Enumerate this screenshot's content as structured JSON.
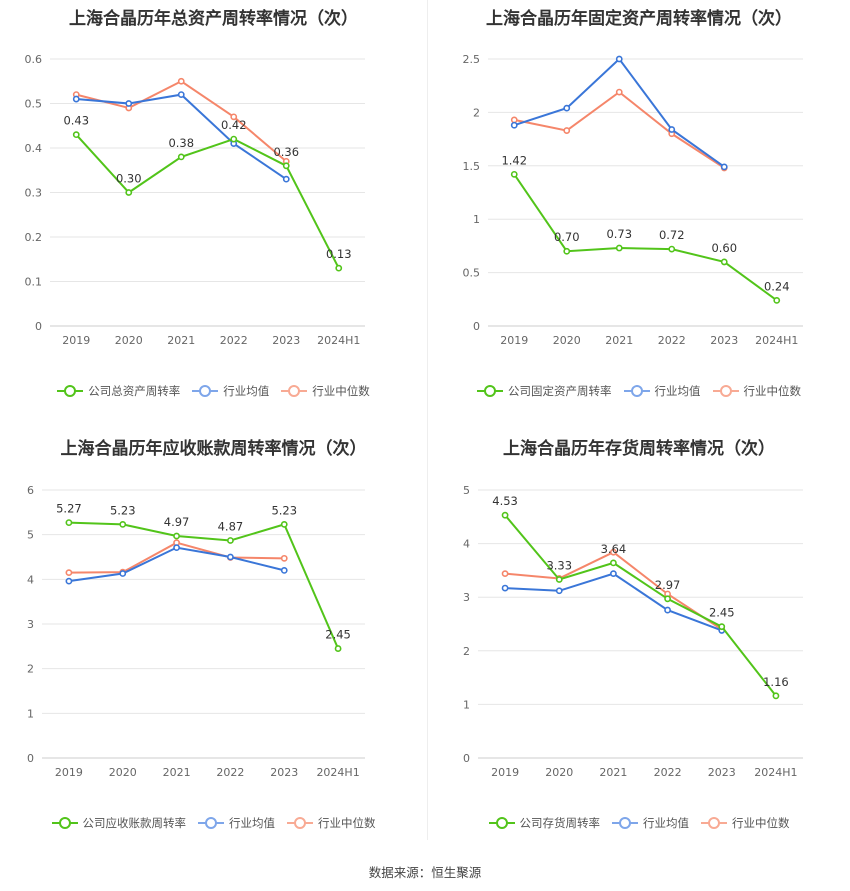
{
  "colors": {
    "company": "#52c41a",
    "avg": "#3a76d8",
    "median": "#f5866a"
  },
  "legend_company_color": "company",
  "charts": [
    {
      "title": "上海合晶历年总资产周转率情况（次）",
      "legend": [
        "公司总资产周转率",
        "行业均值",
        "行业中位数"
      ]
    },
    {
      "title": "上海合晶历年固定资产周转率情况（次）",
      "legend": [
        "公司固定资产周转率",
        "行业均值",
        "行业中位数"
      ]
    },
    {
      "title": "上海合晶历年应收账款周转率情况（次）",
      "legend": [
        "公司应收账款周转率",
        "行业均值",
        "行业中位数"
      ]
    },
    {
      "title": "上海合晶历年存货周转率情况（次）",
      "legend": [
        "公司存货周转率",
        "行业均值",
        "行业中位数"
      ]
    }
  ],
  "chart_data": [
    {
      "type": "line",
      "title": "上海合晶历年总资产周转率情况（次）",
      "categories": [
        "2019",
        "2020",
        "2021",
        "2022",
        "2023",
        "2024H1"
      ],
      "ylim": [
        0,
        0.6
      ],
      "yticks": [
        "0",
        "0.1",
        "0.2",
        "0.3",
        "0.4",
        "0.5",
        "0.6"
      ],
      "grid": true,
      "legend_position": "bottom",
      "series": [
        {
          "name": "公司总资产周转率",
          "role": "company",
          "values": [
            0.43,
            0.3,
            0.38,
            0.42,
            0.36,
            0.13
          ],
          "labels": [
            "0.43",
            "0.30",
            "0.38",
            "0.42",
            "0.36",
            "0.13"
          ]
        },
        {
          "name": "行业均值",
          "role": "avg",
          "values": [
            0.51,
            0.5,
            0.52,
            0.41,
            0.33,
            null
          ]
        },
        {
          "name": "行业中位数",
          "role": "median",
          "values": [
            0.52,
            0.49,
            0.55,
            0.47,
            0.37,
            null
          ]
        }
      ]
    },
    {
      "type": "line",
      "title": "上海合晶历年固定资产周转率情况（次）",
      "categories": [
        "2019",
        "2020",
        "2021",
        "2022",
        "2023",
        "2024H1"
      ],
      "ylim": [
        0,
        2.5
      ],
      "yticks": [
        "0",
        "0.5",
        "1",
        "1.5",
        "2",
        "2.5"
      ],
      "grid": true,
      "legend_position": "bottom",
      "series": [
        {
          "name": "公司固定资产周转率",
          "role": "company",
          "values": [
            1.42,
            0.7,
            0.73,
            0.72,
            0.6,
            0.24
          ],
          "labels": [
            "1.42",
            "0.70",
            "0.73",
            "0.72",
            "0.60",
            "0.24"
          ]
        },
        {
          "name": "行业均值",
          "role": "avg",
          "values": [
            1.88,
            2.04,
            2.5,
            1.84,
            1.49,
            null
          ]
        },
        {
          "name": "行业中位数",
          "role": "median",
          "values": [
            1.93,
            1.83,
            2.19,
            1.8,
            1.48,
            null
          ]
        }
      ]
    },
    {
      "type": "line",
      "title": "上海合晶历年应收账款周转率情况（次）",
      "categories": [
        "2019",
        "2020",
        "2021",
        "2022",
        "2023",
        "2024H1"
      ],
      "ylim": [
        0,
        6
      ],
      "yticks": [
        "0",
        "1",
        "2",
        "3",
        "4",
        "5",
        "6"
      ],
      "grid": true,
      "legend_position": "bottom",
      "series": [
        {
          "name": "公司应收账款周转率",
          "role": "company",
          "values": [
            5.27,
            5.23,
            4.97,
            4.87,
            5.23,
            2.45
          ],
          "labels": [
            "5.27",
            "5.23",
            "4.97",
            "4.87",
            "5.23",
            "2.45"
          ]
        },
        {
          "name": "行业均值",
          "role": "avg",
          "values": [
            3.96,
            4.13,
            4.71,
            4.5,
            4.2,
            null
          ]
        },
        {
          "name": "行业中位数",
          "role": "median",
          "values": [
            4.15,
            4.16,
            4.82,
            4.49,
            4.47,
            null
          ]
        }
      ]
    },
    {
      "type": "line",
      "title": "上海合晶历年存货周转率情况（次）",
      "categories": [
        "2019",
        "2020",
        "2021",
        "2022",
        "2023",
        "2024H1"
      ],
      "ylim": [
        0,
        5
      ],
      "yticks": [
        "0",
        "1",
        "2",
        "3",
        "4",
        "5"
      ],
      "grid": true,
      "legend_position": "bottom",
      "series": [
        {
          "name": "公司存货周转率",
          "role": "company",
          "values": [
            4.53,
            3.33,
            3.64,
            2.97,
            2.45,
            1.16
          ],
          "labels": [
            "4.53",
            "3.33",
            "3.64",
            "2.97",
            "2.45",
            "1.16"
          ]
        },
        {
          "name": "行业均值",
          "role": "avg",
          "values": [
            3.17,
            3.12,
            3.44,
            2.76,
            2.38,
            null
          ]
        },
        {
          "name": "行业中位数",
          "role": "median",
          "values": [
            3.44,
            3.35,
            3.84,
            3.06,
            2.4,
            null
          ]
        }
      ]
    }
  ],
  "footer": "数据来源：恒生聚源"
}
